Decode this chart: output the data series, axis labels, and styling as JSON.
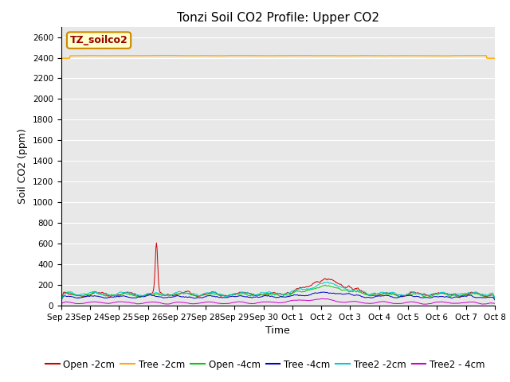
{
  "title": "Tonzi Soil CO2 Profile: Upper CO2",
  "ylabel": "Soil CO2 (ppm)",
  "xlabel": "Time",
  "watermark_text": "TZ_soilco2",
  "ylim": [
    0,
    2700
  ],
  "yticks": [
    0,
    200,
    400,
    600,
    800,
    1000,
    1200,
    1400,
    1600,
    1800,
    2000,
    2200,
    2400,
    2600
  ],
  "bg_color": "#e8e8e8",
  "series": [
    {
      "label": "Open -2cm",
      "color": "#cc0000"
    },
    {
      "label": "Tree -2cm",
      "color": "#ffaa00"
    },
    {
      "label": "Open -4cm",
      "color": "#00cc00"
    },
    {
      "label": "Tree -4cm",
      "color": "#0000cc"
    },
    {
      "label": "Tree2 -2cm",
      "color": "#00cccc"
    },
    {
      "label": "Tree2 - 4cm",
      "color": "#cc00cc"
    }
  ],
  "title_fontsize": 11,
  "axis_label_fontsize": 9,
  "tick_fontsize": 7.5,
  "legend_fontsize": 8.5,
  "watermark_fontsize": 9
}
